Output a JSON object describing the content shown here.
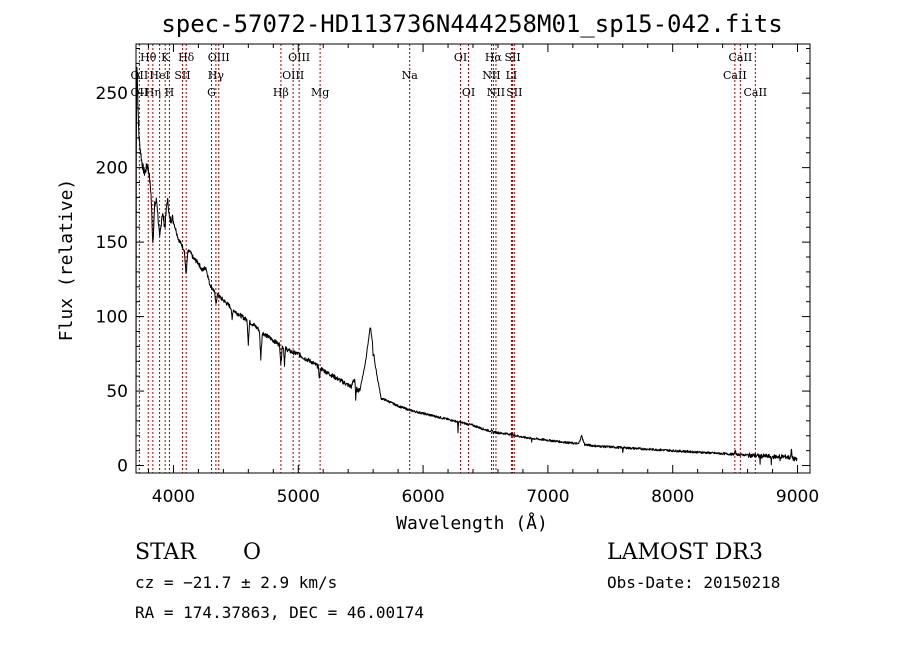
{
  "chart_data": {
    "type": "line",
    "title": "spec-57072-HD113736N444258M01_sp15-042.fits",
    "xlabel": "Wavelength (Å)",
    "ylabel": "Flux (relative)",
    "xlim": [
      3700,
      9100
    ],
    "ylim": [
      -5,
      283
    ],
    "x_ticks": [
      4000,
      5000,
      6000,
      7000,
      8000,
      9000
    ],
    "x_tick_labels": [
      "4000",
      "5000",
      "6000",
      "7000",
      "8000",
      "9000"
    ],
    "y_ticks": [
      0,
      50,
      100,
      150,
      200,
      250
    ],
    "y_tick_labels": [
      "0",
      "50",
      "100",
      "150",
      "200",
      "250"
    ],
    "grid": false,
    "line_color": "#000000",
    "marker_color": "#aa0000",
    "continuum": [
      [
        3700,
        5
      ],
      [
        3703,
        240
      ],
      [
        3708,
        272
      ],
      [
        3712,
        255
      ],
      [
        3718,
        232
      ],
      [
        3725,
        220
      ],
      [
        3735,
        212
      ],
      [
        3745,
        205
      ],
      [
        3755,
        200
      ],
      [
        3770,
        196
      ],
      [
        3790,
        202
      ],
      [
        3800,
        198
      ],
      [
        3820,
        190
      ],
      [
        3835,
        165
      ],
      [
        3850,
        182
      ],
      [
        3870,
        177
      ],
      [
        3890,
        160
      ],
      [
        3910,
        172
      ],
      [
        3935,
        182
      ],
      [
        3950,
        186
      ],
      [
        3965,
        180
      ],
      [
        3980,
        170
      ],
      [
        4000,
        164
      ],
      [
        4020,
        158
      ],
      [
        4040,
        152
      ],
      [
        4060,
        149
      ],
      [
        4080,
        146
      ],
      [
        4100,
        142
      ],
      [
        4130,
        144
      ],
      [
        4160,
        139
      ],
      [
        4200,
        136
      ],
      [
        4230,
        131
      ],
      [
        4260,
        133
      ],
      [
        4290,
        122
      ],
      [
        4320,
        118
      ],
      [
        4360,
        114
      ],
      [
        4400,
        111
      ],
      [
        4450,
        107
      ],
      [
        4500,
        103
      ],
      [
        4550,
        100
      ],
      [
        4600,
        97
      ],
      [
        4650,
        94
      ],
      [
        4700,
        90
      ],
      [
        4750,
        87
      ],
      [
        4800,
        84
      ],
      [
        4870,
        80
      ],
      [
        4950,
        76
      ],
      [
        5000,
        75
      ],
      [
        5050,
        72
      ],
      [
        5100,
        70
      ],
      [
        5200,
        64
      ],
      [
        5300,
        59
      ],
      [
        5400,
        54
      ],
      [
        5500,
        50
      ],
      [
        5600,
        47
      ],
      [
        5700,
        44
      ],
      [
        5800,
        40
      ],
      [
        5900,
        37
      ],
      [
        6000,
        35
      ],
      [
        6100,
        33
      ],
      [
        6200,
        31
      ],
      [
        6300,
        29
      ],
      [
        6400,
        27
      ],
      [
        6500,
        24
      ],
      [
        6600,
        22
      ],
      [
        6700,
        21
      ],
      [
        6800,
        19
      ],
      [
        6900,
        18
      ],
      [
        7000,
        17
      ],
      [
        7100,
        16
      ],
      [
        7200,
        15
      ],
      [
        7300,
        14
      ],
      [
        7400,
        13
      ],
      [
        7500,
        12.5
      ],
      [
        7600,
        12
      ],
      [
        7700,
        11.5
      ],
      [
        7800,
        11
      ],
      [
        7900,
        10.5
      ],
      [
        8000,
        10
      ],
      [
        8100,
        9.5
      ],
      [
        8200,
        9
      ],
      [
        8300,
        8.5
      ],
      [
        8400,
        8
      ],
      [
        8500,
        7.5
      ],
      [
        8600,
        7
      ],
      [
        8700,
        6.5
      ],
      [
        8800,
        6
      ],
      [
        8900,
        6
      ],
      [
        8950,
        5
      ],
      [
        8990,
        4
      ]
    ],
    "features": [
      [
        3835,
        150,
        30
      ],
      [
        3889,
        152,
        25
      ],
      [
        3933,
        160,
        25
      ],
      [
        3968,
        165,
        20
      ],
      [
        4101,
        128,
        14
      ],
      [
        4340,
        108,
        12
      ],
      [
        4470,
        97,
        8
      ],
      [
        4600,
        82,
        10
      ],
      [
        4700,
        72,
        12
      ],
      [
        4861,
        67,
        10
      ],
      [
        4890,
        68,
        8
      ],
      [
        5170,
        58,
        10
      ],
      [
        5447,
        49,
        5
      ],
      [
        5448,
        60,
        20
      ],
      [
        5577,
        56,
        42
      ],
      [
        5578,
        85,
        86
      ],
      [
        5460,
        40,
        6
      ],
      [
        5600,
        42,
        5
      ],
      [
        6280,
        22,
        4
      ],
      [
        6563,
        21,
        3
      ],
      [
        6870,
        15,
        3
      ],
      [
        7270,
        20,
        24
      ],
      [
        7600,
        9,
        4
      ],
      [
        8500,
        10,
        10
      ],
      [
        8700,
        2,
        5
      ],
      [
        8790,
        0,
        4
      ],
      [
        8860,
        3,
        5
      ],
      [
        8950,
        11,
        8
      ],
      [
        9000,
        3,
        4
      ]
    ],
    "lines": [
      {
        "label": "Hθ",
        "wavelength": 3798,
        "row": 0
      },
      {
        "label": "OII",
        "wavelength": 3727,
        "row": 1
      },
      {
        "label": "OII",
        "wavelength": 3727,
        "row": 2
      },
      {
        "label": "Hη",
        "wavelength": 3835,
        "row": 2
      },
      {
        "label": "HeI",
        "wavelength": 3889,
        "row": 1
      },
      {
        "label": "K",
        "wavelength": 3934,
        "row": 0
      },
      {
        "label": "H",
        "wavelength": 3968,
        "row": 2
      },
      {
        "label": "SII",
        "wavelength": 4072,
        "row": 1
      },
      {
        "label": "Hδ",
        "wavelength": 4102,
        "row": 0
      },
      {
        "label": "OIII",
        "wavelength": 4363,
        "row": 0
      },
      {
        "label": "Hγ",
        "wavelength": 4340,
        "row": 1
      },
      {
        "label": "G",
        "wavelength": 4305,
        "row": 2
      },
      {
        "label": "Hβ",
        "wavelength": 4861,
        "row": 2
      },
      {
        "label": "OIII",
        "wavelength": 5007,
        "row": 0
      },
      {
        "label": "OIII",
        "wavelength": 4959,
        "row": 1
      },
      {
        "label": "Mg",
        "wavelength": 5175,
        "row": 2
      },
      {
        "label": "Na",
        "wavelength": 5893,
        "row": 1
      },
      {
        "label": "OI",
        "wavelength": 6300,
        "row": 0
      },
      {
        "label": "OI",
        "wavelength": 6364,
        "row": 2
      },
      {
        "label": "Hα",
        "wavelength": 6563,
        "row": 0
      },
      {
        "label": "SII",
        "wavelength": 6717,
        "row": 0
      },
      {
        "label": "NII",
        "wavelength": 6548,
        "row": 1
      },
      {
        "label": "LI",
        "wavelength": 6708,
        "row": 1
      },
      {
        "label": "NII",
        "wavelength": 6584,
        "row": 2
      },
      {
        "label": "SII",
        "wavelength": 6731,
        "row": 2
      },
      {
        "label": "CaII",
        "wavelength": 8542,
        "row": 0
      },
      {
        "label": "CaII",
        "wavelength": 8498,
        "row": 1
      },
      {
        "label": "CaII",
        "wavelength": 8662,
        "row": 2
      }
    ]
  },
  "info": {
    "object_class": "STAR",
    "subclass": "O",
    "survey": "LAMOST DR3",
    "redshift": "cz = −21.7 ± 2.9 km/s",
    "obs_date": "Obs-Date: 20150218",
    "coords": "RA = 174.37863, DEC =  46.00174"
  }
}
